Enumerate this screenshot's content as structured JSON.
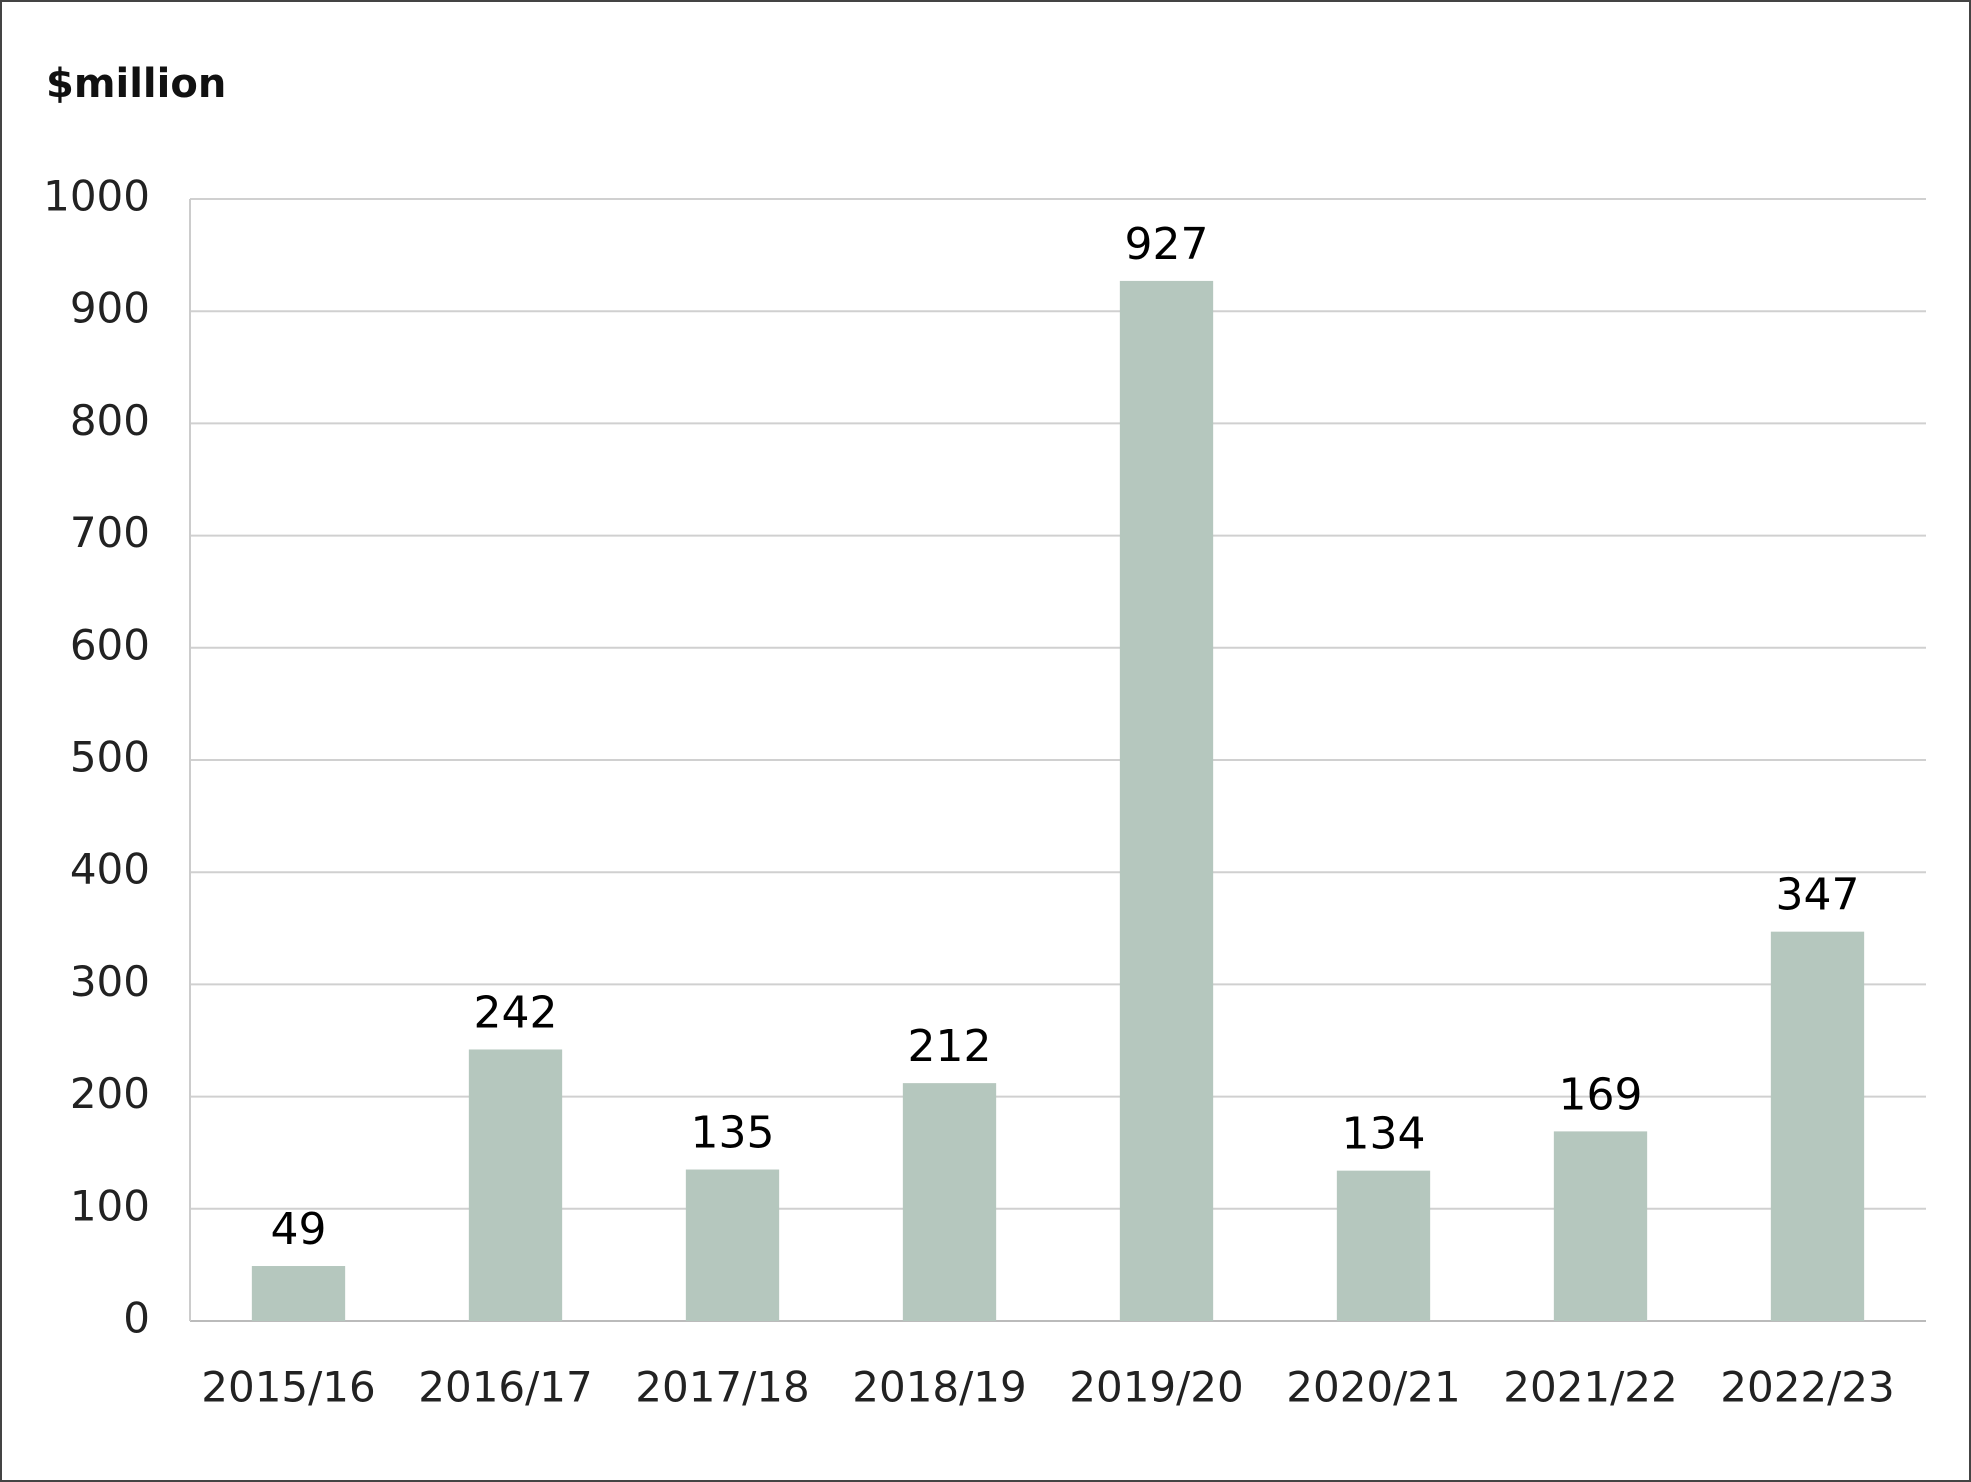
{
  "chart_data": {
    "type": "bar",
    "title": "$million",
    "categories": [
      "2015/16",
      "2016/17",
      "2017/18",
      "2018/19",
      "2019/20",
      "2020/21",
      "2021/22",
      "2022/23"
    ],
    "values": [
      49,
      242,
      135,
      212,
      927,
      134,
      169,
      347
    ],
    "color": "#b5c7be",
    "ylim": [
      0,
      1000
    ],
    "yticks": [
      0,
      100,
      200,
      300,
      400,
      500,
      600,
      700,
      800,
      900,
      1000
    ],
    "grid": true
  }
}
